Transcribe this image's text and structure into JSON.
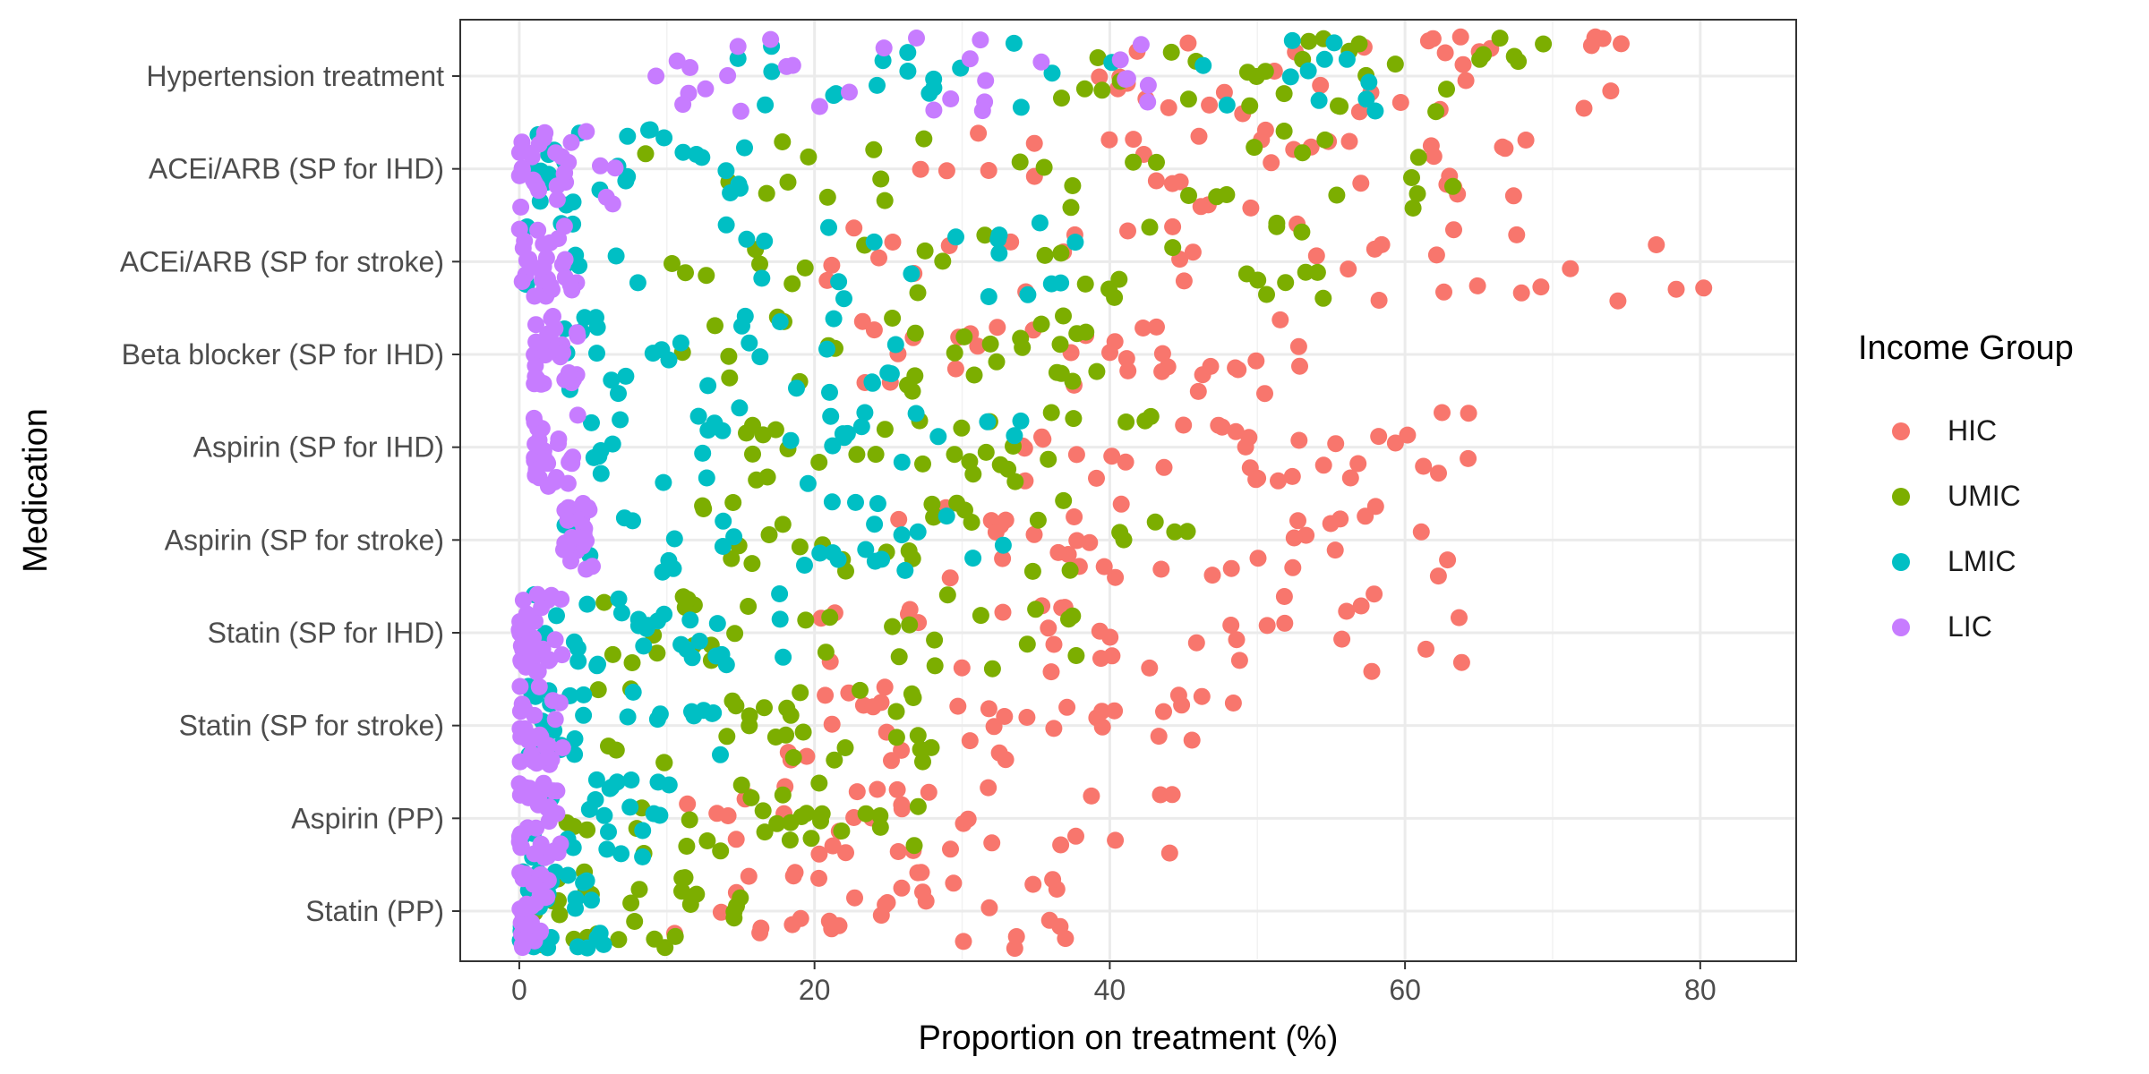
{
  "chart_data": {
    "type": "scatter",
    "title": "",
    "xlabel": "Proportion on treatment (%)",
    "ylabel": "Medication",
    "xlim": [
      -4,
      86.5
    ],
    "xticks": [
      0,
      20,
      40,
      60,
      80
    ],
    "grid": true,
    "categories": [
      "Hypertension treatment",
      "ACEi/ARB (SP for IHD)",
      "ACEi/ARB (SP for stroke)",
      "Beta blocker (SP for IHD)",
      "Aspirin (SP for IHD)",
      "Aspirin (SP for stroke)",
      "Statin (SP for IHD)",
      "Statin (SP for stroke)",
      "Aspirin (PP)",
      "Statin (PP)"
    ],
    "legend": {
      "title": "Income Group",
      "position": "right"
    },
    "series": [
      {
        "name": "HIC",
        "color": "#F8766D",
        "ranges": [
          [
            38,
            76
          ],
          [
            26,
            70
          ],
          [
            19,
            82
          ],
          [
            20,
            54
          ],
          [
            33,
            65
          ],
          [
            25,
            63
          ],
          [
            20,
            64
          ],
          [
            18,
            50
          ],
          [
            10,
            45
          ],
          [
            10,
            37
          ]
        ]
      },
      {
        "name": "UMIC",
        "color": "#7CAE00",
        "ranges": [
          [
            34,
            71
          ],
          [
            8,
            67
          ],
          [
            6,
            55
          ],
          [
            11,
            40
          ],
          [
            15,
            46
          ],
          [
            12,
            46
          ],
          [
            5,
            40
          ],
          [
            5,
            28
          ],
          [
            3,
            29
          ],
          [
            1,
            16
          ]
        ]
      },
      {
        "name": "LMIC",
        "color": "#00BFC4",
        "ranges": [
          [
            13,
            60
          ],
          [
            1,
            16
          ],
          [
            0,
            42
          ],
          [
            3,
            26
          ],
          [
            4,
            34
          ],
          [
            3,
            33
          ],
          [
            1,
            18
          ],
          [
            0,
            14
          ],
          [
            0,
            11
          ],
          [
            0,
            6
          ]
        ]
      },
      {
        "name": "LIC",
        "color": "#C77CFF",
        "ranges": [
          [
            9,
            44
          ],
          [
            0,
            7
          ],
          [
            0,
            4
          ],
          [
            1,
            4
          ],
          [
            1,
            4
          ],
          [
            3,
            5
          ],
          [
            0,
            3
          ],
          [
            0,
            3
          ],
          [
            0,
            3
          ],
          [
            0,
            2
          ]
        ]
      }
    ]
  }
}
